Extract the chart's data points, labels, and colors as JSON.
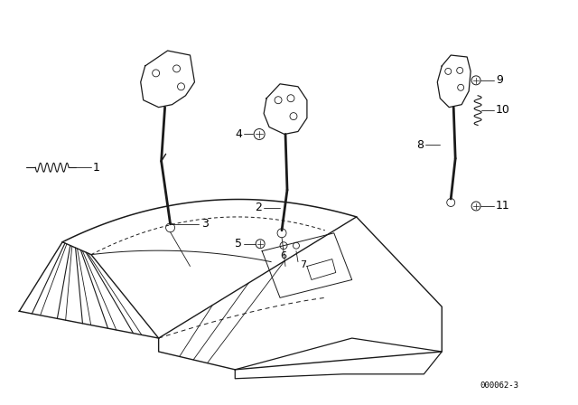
{
  "title": "",
  "diagram_id": "000062-3",
  "background_color": "#ffffff",
  "line_color": "#1a1a1a",
  "text_color": "#000000",
  "figsize": [
    6.4,
    4.48
  ],
  "dpi": 100
}
